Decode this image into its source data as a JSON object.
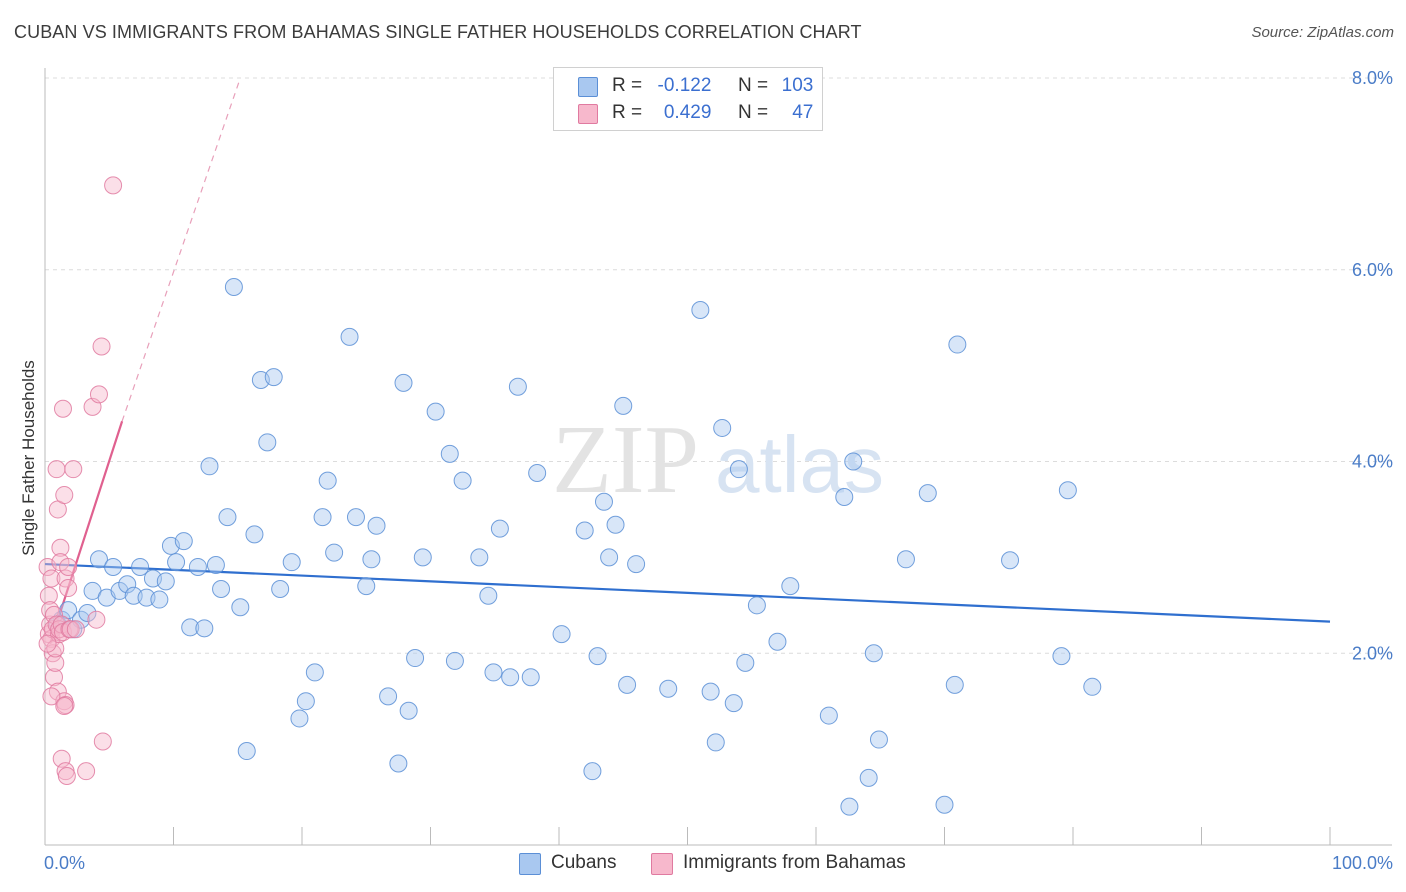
{
  "title": "CUBAN VS IMMIGRANTS FROM BAHAMAS SINGLE FATHER HOUSEHOLDS CORRELATION CHART",
  "source": "Source: ZipAtlas.com",
  "watermark": {
    "zip": "ZIP",
    "atlas": "atlas"
  },
  "legend": {
    "r_label": "R =",
    "n_label": "N =",
    "rows": [
      {
        "r": "-0.122",
        "n": "103",
        "swatch": "#a9c8f0",
        "border": "#5b8fd6"
      },
      {
        "r": "0.429",
        "n": "47",
        "swatch": "#f7b8cc",
        "border": "#e07aa0"
      }
    ]
  },
  "bottom_legend": [
    {
      "label": "Cubans",
      "swatch": "#a9c8f0",
      "border": "#5b8fd6"
    },
    {
      "label": "Immigrants from Bahamas",
      "swatch": "#f7b8cc",
      "border": "#e07aa0"
    }
  ],
  "chart_data": {
    "type": "scatter",
    "title": "CUBAN VS IMMIGRANTS FROM BAHAMAS SINGLE FATHER HOUSEHOLDS CORRELATION CHART",
    "ylabel": "Single Father Households",
    "xlabel": "",
    "xlim": [
      0,
      100
    ],
    "ylim": [
      0,
      8.0
    ],
    "x_tick_labels": [
      "0.0%",
      "100.0%"
    ],
    "y_ticks": [
      2.0,
      4.0,
      6.0,
      8.0
    ],
    "y_tick_labels": [
      "2.0%",
      "4.0%",
      "6.0%",
      "8.0%"
    ],
    "series": [
      {
        "name": "Cubans",
        "color": "#5b8fd6",
        "fill": "#a9c8f0",
        "trend": {
          "x": [
            0,
            100
          ],
          "y": [
            2.93,
            2.33
          ]
        },
        "points": [
          [
            1.0,
            2.3
          ],
          [
            1.3,
            2.35
          ],
          [
            1.8,
            2.45
          ],
          [
            2.2,
            2.25
          ],
          [
            2.8,
            2.35
          ],
          [
            3.3,
            2.42
          ],
          [
            3.7,
            2.65
          ],
          [
            4.2,
            2.98
          ],
          [
            4.8,
            2.58
          ],
          [
            5.3,
            2.9
          ],
          [
            5.8,
            2.65
          ],
          [
            6.4,
            2.72
          ],
          [
            6.9,
            2.6
          ],
          [
            7.4,
            2.9
          ],
          [
            7.9,
            2.58
          ],
          [
            8.4,
            2.78
          ],
          [
            8.9,
            2.56
          ],
          [
            9.4,
            2.75
          ],
          [
            9.8,
            3.12
          ],
          [
            10.2,
            2.95
          ],
          [
            10.8,
            3.17
          ],
          [
            11.3,
            2.27
          ],
          [
            11.9,
            2.9
          ],
          [
            12.4,
            2.26
          ],
          [
            12.8,
            3.95
          ],
          [
            13.3,
            2.92
          ],
          [
            13.7,
            2.67
          ],
          [
            14.2,
            3.42
          ],
          [
            14.7,
            5.82
          ],
          [
            15.2,
            2.48
          ],
          [
            15.7,
            0.98
          ],
          [
            16.3,
            3.24
          ],
          [
            16.8,
            4.85
          ],
          [
            17.3,
            4.2
          ],
          [
            17.8,
            4.88
          ],
          [
            18.3,
            2.67
          ],
          [
            19.2,
            2.95
          ],
          [
            19.8,
            1.32
          ],
          [
            20.3,
            1.5
          ],
          [
            21.0,
            1.8
          ],
          [
            21.6,
            3.42
          ],
          [
            22.0,
            3.8
          ],
          [
            22.5,
            3.05
          ],
          [
            23.7,
            5.3
          ],
          [
            24.2,
            3.42
          ],
          [
            25.0,
            2.7
          ],
          [
            25.4,
            2.98
          ],
          [
            25.8,
            3.33
          ],
          [
            26.7,
            1.55
          ],
          [
            27.5,
            0.85
          ],
          [
            27.9,
            4.82
          ],
          [
            28.3,
            1.4
          ],
          [
            28.8,
            1.95
          ],
          [
            29.4,
            3.0
          ],
          [
            30.4,
            4.52
          ],
          [
            31.5,
            4.08
          ],
          [
            31.9,
            1.92
          ],
          [
            32.5,
            3.8
          ],
          [
            33.8,
            3.0
          ],
          [
            34.5,
            2.6
          ],
          [
            34.9,
            1.8
          ],
          [
            35.4,
            3.3
          ],
          [
            36.2,
            1.75
          ],
          [
            36.8,
            4.78
          ],
          [
            37.8,
            1.75
          ],
          [
            38.3,
            3.88
          ],
          [
            40.2,
            2.2
          ],
          [
            42.0,
            3.28
          ],
          [
            42.6,
            0.77
          ],
          [
            43.0,
            1.97
          ],
          [
            43.5,
            3.58
          ],
          [
            43.9,
            3.0
          ],
          [
            44.4,
            3.34
          ],
          [
            45.0,
            4.58
          ],
          [
            45.3,
            1.67
          ],
          [
            46.0,
            2.93
          ],
          [
            48.5,
            1.63
          ],
          [
            51.0,
            5.58
          ],
          [
            51.8,
            1.6
          ],
          [
            52.2,
            1.07
          ],
          [
            52.7,
            4.35
          ],
          [
            53.6,
            1.48
          ],
          [
            54.5,
            1.9
          ],
          [
            55.4,
            2.5
          ],
          [
            57.0,
            2.12
          ],
          [
            58.0,
            2.7
          ],
          [
            61.0,
            1.35
          ],
          [
            62.2,
            3.63
          ],
          [
            62.6,
            0.4
          ],
          [
            62.9,
            4.0
          ],
          [
            64.1,
            0.7
          ],
          [
            64.5,
            2.0
          ],
          [
            64.9,
            1.1
          ],
          [
            67.0,
            2.98
          ],
          [
            68.7,
            3.67
          ],
          [
            70.0,
            0.42
          ],
          [
            70.8,
            1.67
          ],
          [
            71.0,
            5.22
          ],
          [
            75.1,
            2.97
          ],
          [
            79.1,
            1.97
          ],
          [
            79.6,
            3.7
          ],
          [
            81.5,
            1.65
          ],
          [
            54.0,
            3.92
          ]
        ]
      },
      {
        "name": "Immigrants from Bahamas",
        "color": "#e07aa0",
        "fill": "#f7b8cc",
        "trend": {
          "x": [
            0.4,
            6.0
          ],
          "y": [
            2.1,
            4.42
          ]
        },
        "trend_extension": {
          "x": [
            6.0,
            15.2
          ],
          "y": [
            4.42,
            8.0
          ]
        },
        "points": [
          [
            0.2,
            2.9
          ],
          [
            0.3,
            2.6
          ],
          [
            0.3,
            2.2
          ],
          [
            0.4,
            2.3
          ],
          [
            0.4,
            2.45
          ],
          [
            0.5,
            2.78
          ],
          [
            0.5,
            2.15
          ],
          [
            0.6,
            2.0
          ],
          [
            0.6,
            2.25
          ],
          [
            0.7,
            1.75
          ],
          [
            0.7,
            2.4
          ],
          [
            0.8,
            1.9
          ],
          [
            0.8,
            2.05
          ],
          [
            0.9,
            3.92
          ],
          [
            0.9,
            2.3
          ],
          [
            1.0,
            1.6
          ],
          [
            1.0,
            3.5
          ],
          [
            1.1,
            2.2
          ],
          [
            1.1,
            2.25
          ],
          [
            1.2,
            3.1
          ],
          [
            1.2,
            2.95
          ],
          [
            1.3,
            2.3
          ],
          [
            1.3,
            0.9
          ],
          [
            1.4,
            4.55
          ],
          [
            1.4,
            2.22
          ],
          [
            1.5,
            1.5
          ],
          [
            1.5,
            3.65
          ],
          [
            1.6,
            1.46
          ],
          [
            1.6,
            0.77
          ],
          [
            1.6,
            2.78
          ],
          [
            1.7,
            0.72
          ],
          [
            1.8,
            2.9
          ],
          [
            1.8,
            2.68
          ],
          [
            1.9,
            2.25
          ],
          [
            2.0,
            2.25
          ],
          [
            2.2,
            3.92
          ],
          [
            2.4,
            2.25
          ],
          [
            3.2,
            0.77
          ],
          [
            3.7,
            4.57
          ],
          [
            4.0,
            2.35
          ],
          [
            4.2,
            4.7
          ],
          [
            4.4,
            5.2
          ],
          [
            4.5,
            1.08
          ],
          [
            5.3,
            6.88
          ],
          [
            0.5,
            1.55
          ],
          [
            0.2,
            2.1
          ],
          [
            1.5,
            1.45
          ]
        ]
      }
    ]
  }
}
